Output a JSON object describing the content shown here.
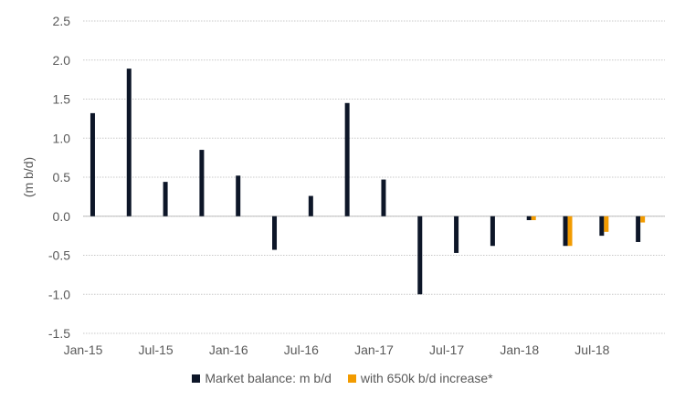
{
  "chart_data": {
    "type": "bar",
    "ylabel": "(m b/d)",
    "ylim": [
      -1.5,
      2.5
    ],
    "yticks": [
      "2.5",
      "2.0",
      "1.5",
      "1.0",
      "0.5",
      "0.0",
      "-0.5",
      "-1.0",
      "-1.5"
    ],
    "ytick_values": [
      2.5,
      2.0,
      1.5,
      1.0,
      0.5,
      0.0,
      -0.5,
      -1.0,
      -1.5
    ],
    "xtick_labels": [
      "Jan-15",
      "Jul-15",
      "Jan-16",
      "Jul-16",
      "Jan-17",
      "Jul-17",
      "Jan-18",
      "Jul-18"
    ],
    "categories": [
      "Q1-15",
      "Q2-15",
      "Q3-15",
      "Q4-15",
      "Q1-16",
      "Q2-16",
      "Q3-16",
      "Q4-16",
      "Q1-17",
      "Q2-17",
      "Q3-17",
      "Q4-17",
      "Q1-18",
      "Q2-18",
      "Q3-18",
      "Q4-18"
    ],
    "series": [
      {
        "name": "Market balance: m b/d",
        "color": "#0d1628",
        "values": [
          1.32,
          1.89,
          0.44,
          0.85,
          0.52,
          -0.43,
          0.26,
          1.45,
          0.47,
          -1.0,
          -0.47,
          -0.38,
          -0.05,
          -0.38,
          -0.25,
          -0.33
        ]
      },
      {
        "name": "with 650k b/d increase*",
        "color": "#f29b00",
        "values": [
          null,
          null,
          null,
          null,
          null,
          null,
          null,
          null,
          null,
          null,
          null,
          null,
          -0.05,
          -0.38,
          -0.2,
          -0.08
        ]
      }
    ],
    "grid": true,
    "legend_position": "bottom-center"
  }
}
